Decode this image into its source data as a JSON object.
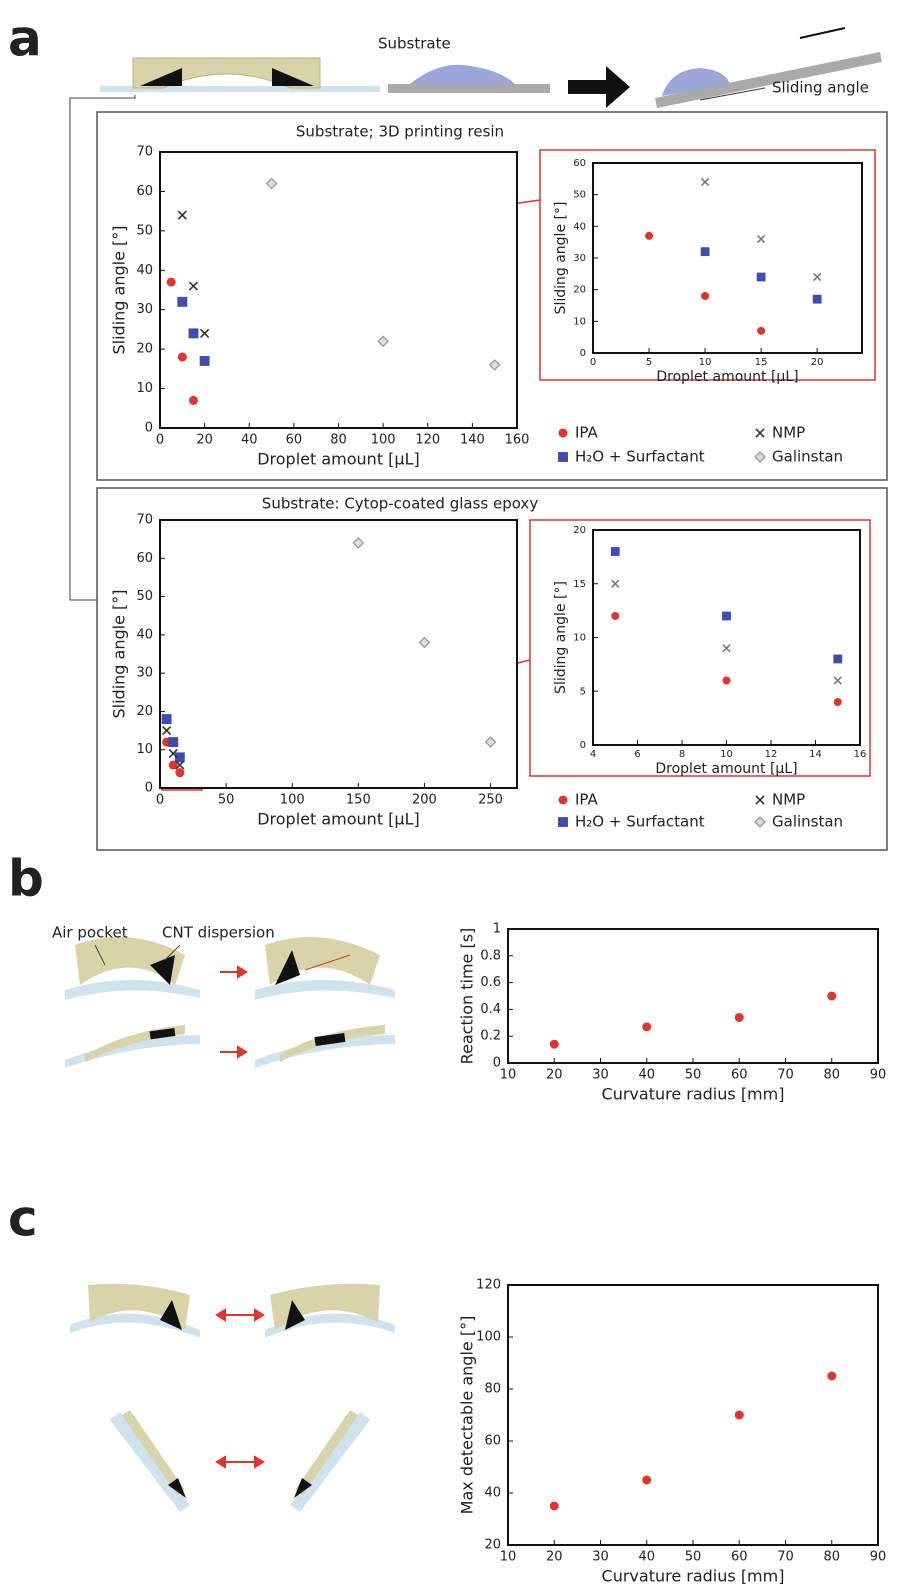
{
  "annotations": {
    "panel_a": "a",
    "panel_b": "b",
    "panel_c": "c",
    "substrate": "Substrate",
    "sliding_angle": "Sliding angle",
    "air_pocket": "Air pocket",
    "cnt_dispersion": "CNT dispersion"
  },
  "chart_data": [
    {
      "type": "scatter",
      "title": "Substrate; 3D printing resin",
      "x_label": "Droplet amount [μL]",
      "y_label": "Sliding angle [°]",
      "xlim": [
        0,
        160
      ],
      "xticks": [
        0,
        20,
        40,
        60,
        80,
        100,
        120,
        140,
        160
      ],
      "ylim": [
        0,
        70
      ],
      "yticks": [
        0,
        10,
        20,
        30,
        40,
        50,
        60,
        70
      ],
      "legend": true,
      "series": [
        {
          "name": "IPA",
          "color": "#e3342b",
          "marker": "circle",
          "x": [
            5,
            10,
            15
          ],
          "values": [
            37,
            18,
            7
          ]
        },
        {
          "name": "H₂O + Surfactant",
          "color": "#3d4db0",
          "marker": "square",
          "x": [
            10,
            15,
            20
          ],
          "values": [
            32,
            24,
            17
          ]
        },
        {
          "name": "NMP",
          "color": "#333333",
          "marker": "x",
          "x": [
            10,
            15,
            20
          ],
          "values": [
            54,
            36,
            24
          ]
        },
        {
          "name": "Galinstan",
          "color": "#9a9a9a",
          "marker": "diamond",
          "x": [
            50,
            100,
            150
          ],
          "values": [
            62,
            22,
            16
          ]
        }
      ]
    },
    {
      "type": "scatter",
      "x_label": "Droplet amount [μL]",
      "y_label": "Sliding angle [°]",
      "xlim": [
        0,
        24
      ],
      "xticks": [
        0,
        5,
        10,
        15,
        20
      ],
      "ylim": [
        0,
        60
      ],
      "yticks": [
        0,
        10,
        20,
        30,
        40,
        50,
        60
      ],
      "series": [
        {
          "color": "#e3342b",
          "marker": "circle",
          "x": [
            5,
            10,
            15
          ],
          "values": [
            37,
            18,
            7
          ]
        },
        {
          "color": "#3d4db0",
          "marker": "square",
          "x": [
            10,
            15,
            20
          ],
          "values": [
            32,
            24,
            17
          ]
        },
        {
          "color": "#777777",
          "marker": "x",
          "x": [
            10,
            15,
            20
          ],
          "values": [
            54,
            36,
            24
          ]
        }
      ]
    },
    {
      "type": "scatter",
      "title": "Substrate: Cytop-coated glass epoxy",
      "x_label": "Droplet amount [μL]",
      "y_label": "Sliding angle [°]",
      "xlim": [
        0,
        270
      ],
      "xticks": [
        0,
        50,
        100,
        150,
        200,
        250
      ],
      "ylim": [
        0,
        70
      ],
      "yticks": [
        0,
        10,
        20,
        30,
        40,
        50,
        60,
        70
      ],
      "legend": true,
      "series": [
        {
          "name": "IPA",
          "color": "#e3342b",
          "marker": "circle",
          "x": [
            5,
            10,
            15
          ],
          "values": [
            12,
            6,
            4
          ]
        },
        {
          "name": "H₂O + Surfactant",
          "color": "#3d4db0",
          "marker": "square",
          "x": [
            5,
            10,
            15
          ],
          "values": [
            18,
            12,
            8
          ]
        },
        {
          "name": "NMP",
          "color": "#333333",
          "marker": "x",
          "x": [
            5,
            10,
            15
          ],
          "values": [
            15,
            9,
            6
          ]
        },
        {
          "name": "Galinstan",
          "color": "#9a9a9a",
          "marker": "diamond",
          "x": [
            150,
            200,
            250
          ],
          "values": [
            64,
            38,
            12
          ]
        }
      ]
    },
    {
      "type": "scatter",
      "x_label": "Droplet amount [μL]",
      "y_label": "Sliding angle [°]",
      "xlim": [
        4,
        16
      ],
      "xticks": [
        4,
        6,
        8,
        10,
        12,
        14,
        16
      ],
      "ylim": [
        0,
        20
      ],
      "yticks": [
        0,
        5,
        10,
        15,
        20
      ],
      "series": [
        {
          "color": "#e3342b",
          "marker": "circle",
          "x": [
            5,
            10,
            15
          ],
          "values": [
            12,
            6,
            4
          ]
        },
        {
          "color": "#3d4db0",
          "marker": "square",
          "x": [
            5,
            10,
            15
          ],
          "values": [
            18,
            12,
            8
          ]
        },
        {
          "color": "#777777",
          "marker": "x",
          "x": [
            5,
            10,
            15
          ],
          "values": [
            15,
            9,
            6
          ]
        }
      ]
    },
    {
      "type": "scatter",
      "x_label": "Curvature radius [mm]",
      "y_label": "Reaction time [s]",
      "xlim": [
        10,
        90
      ],
      "xticks": [
        10,
        20,
        30,
        40,
        50,
        60,
        70,
        80,
        90
      ],
      "ylim": [
        0,
        1
      ],
      "yticks": [
        0,
        0.2,
        0.4,
        0.6,
        0.8,
        1
      ],
      "series": [
        {
          "color": "#e3342b",
          "marker": "circle",
          "x": [
            20,
            40,
            60,
            80
          ],
          "values": [
            0.14,
            0.27,
            0.34,
            0.5
          ]
        }
      ]
    },
    {
      "type": "scatter",
      "x_label": "Curvature radius [mm]",
      "y_label": "Max detectable angle [°]",
      "xlim": [
        10,
        90
      ],
      "xticks": [
        10,
        20,
        30,
        40,
        50,
        60,
        70,
        80,
        90
      ],
      "ylim": [
        20,
        120
      ],
      "yticks": [
        20,
        40,
        60,
        80,
        100,
        120
      ],
      "series": [
        {
          "color": "#e3342b",
          "marker": "circle",
          "x": [
            20,
            40,
            60,
            80
          ],
          "values": [
            35,
            45,
            70,
            85
          ]
        }
      ]
    }
  ]
}
